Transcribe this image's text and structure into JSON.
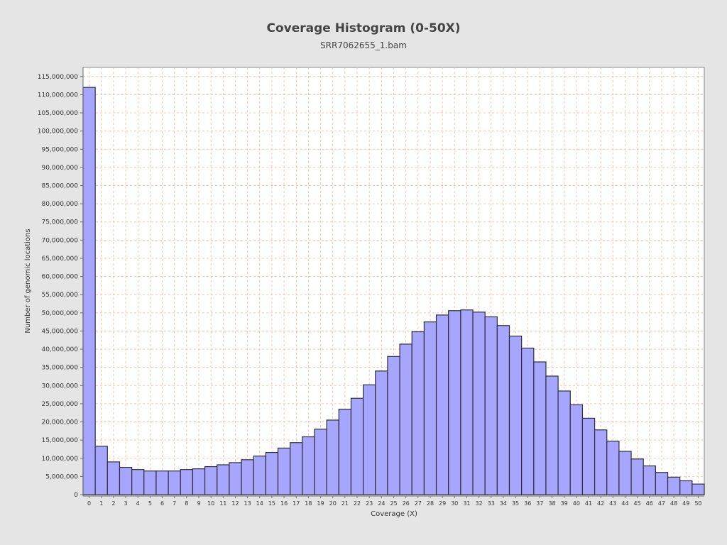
{
  "chart_data": {
    "type": "bar",
    "title": "Coverage Histogram (0-50X)",
    "subtitle": "SRR7062655_1.bam",
    "xlabel": "Coverage (X)",
    "ylabel": "Number of genomic locations",
    "categories": [
      "0",
      "1",
      "2",
      "3",
      "4",
      "5",
      "6",
      "7",
      "8",
      "9",
      "10",
      "11",
      "12",
      "13",
      "14",
      "15",
      "16",
      "17",
      "18",
      "19",
      "20",
      "21",
      "22",
      "23",
      "24",
      "25",
      "26",
      "27",
      "28",
      "29",
      "30",
      "31",
      "32",
      "33",
      "34",
      "35",
      "36",
      "37",
      "38",
      "39",
      "40",
      "41",
      "42",
      "43",
      "44",
      "45",
      "46",
      "47",
      "48",
      "49",
      "50"
    ],
    "values": [
      112000000,
      13300000,
      9000000,
      7500000,
      6900000,
      6500000,
      6500000,
      6500000,
      6900000,
      7100000,
      7700000,
      8200000,
      8800000,
      9600000,
      10600000,
      11600000,
      12800000,
      14300000,
      15900000,
      18000000,
      20500000,
      23500000,
      26500000,
      30200000,
      34000000,
      38000000,
      41400000,
      44800000,
      47500000,
      49400000,
      50600000,
      50800000,
      50200000,
      48900000,
      46500000,
      43600000,
      40300000,
      36500000,
      32600000,
      28500000,
      24700000,
      21000000,
      17800000,
      14700000,
      11900000,
      9800000,
      7900000,
      6100000,
      4800000,
      3800000,
      2900000
    ],
    "ylim": [
      0,
      117500000
    ],
    "y_ticks": [
      "0",
      "5,000,000",
      "10,000,000",
      "15,000,000",
      "20,000,000",
      "25,000,000",
      "30,000,000",
      "35,000,000",
      "40,000,000",
      "45,000,000",
      "50,000,000",
      "55,000,000",
      "60,000,000",
      "65,000,000",
      "70,000,000",
      "75,000,000",
      "80,000,000",
      "85,000,000",
      "90,000,000",
      "95,000,000",
      "100,000,000",
      "105,000,000",
      "110,000,000",
      "115,000,000"
    ],
    "grid": true,
    "colors": {
      "bar_fill": "#a6a6ff",
      "bar_stroke": "#2e2e3a",
      "grid": "#f0c8b0",
      "plot_bg": "#ffffff",
      "page_bg": "#e5e5e5"
    }
  }
}
